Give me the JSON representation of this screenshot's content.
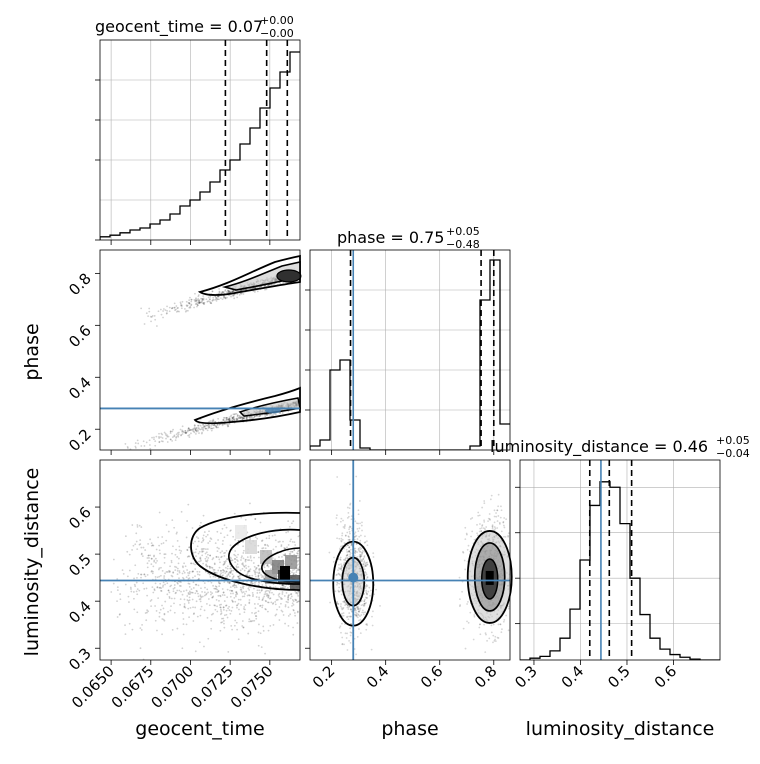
{
  "colors": {
    "truth": "#4682b4",
    "hist": "#000000",
    "grid": "#b0b0b0",
    "quantile": "#000000",
    "density_dark": "#303030"
  },
  "chart_data": [
    {
      "type": "histogram",
      "panel": "geocent_time_1d",
      "title_main": "geocent_time = 0.07",
      "title_sup": "+0.00",
      "title_sub": "−0.00",
      "xlim": [
        0.0643,
        0.0769
      ],
      "bin_edges_start": 0.0643,
      "bin_width": 0.00063,
      "counts": [
        0.008,
        0.012,
        0.018,
        0.025,
        0.03,
        0.04,
        0.05,
        0.065,
        0.085,
        0.1,
        0.12,
        0.145,
        0.175,
        0.2,
        0.24,
        0.28,
        0.33,
        0.38,
        0.42,
        0.47
      ],
      "ylim": [
        0,
        0.5
      ],
      "quantiles": [
        0.0722,
        0.0748,
        0.0761
      ],
      "grid": true
    },
    {
      "type": "histogram",
      "panel": "phase_1d",
      "title_main": "phase = 0.75",
      "title_sup": "+0.05",
      "title_sub": "−0.48",
      "xlim": [
        0.12,
        0.86
      ],
      "bin_edges_start": 0.12,
      "bin_width": 0.037,
      "counts": [
        0.02,
        0.05,
        0.4,
        0.45,
        0.15,
        0.01,
        0,
        0,
        0,
        0,
        0,
        0,
        0,
        0,
        0,
        0,
        0.02,
        0.75,
        0.95,
        0.13
      ],
      "ylim": [
        0,
        1.0
      ],
      "quantiles": [
        0.27,
        0.753,
        0.8
      ],
      "truth": 0.28,
      "grid": true
    },
    {
      "type": "histogram",
      "panel": "luminosity_distance_1d",
      "title_main": "luminosity_distance = 0.46",
      "title_sup": "+0.05",
      "title_sub": "−0.04",
      "xlim": [
        0.27,
        0.7
      ],
      "bin_edges_start": 0.27,
      "bin_width": 0.0215,
      "counts": [
        0.0,
        0.01,
        0.02,
        0.05,
        0.12,
        0.28,
        0.55,
        0.85,
        0.98,
        0.95,
        0.75,
        0.45,
        0.25,
        0.12,
        0.06,
        0.03,
        0.015,
        0.005,
        0,
        0
      ],
      "ylim": [
        0,
        1.1
      ],
      "quantiles": [
        0.42,
        0.462,
        0.51
      ],
      "truth": 0.444,
      "grid": true
    },
    {
      "type": "scatter",
      "panel": "phase_vs_geocent_time",
      "xlim": [
        0.0643,
        0.0769
      ],
      "ylim": [
        0.12,
        0.89
      ],
      "ylabel": "phase",
      "yticks": [
        0.2,
        0.4,
        0.6,
        0.8
      ],
      "truth_y": 0.28,
      "modes": [
        {
          "x0": 0.0665,
          "x1": 0.0769,
          "y0": 0.62,
          "y1": 0.8,
          "peak_x": 0.0762,
          "peak_y": 0.79
        },
        {
          "x0": 0.0652,
          "x1": 0.0769,
          "y0": 0.12,
          "y1": 0.3,
          "peak_x": 0.0752,
          "peak_y": 0.28
        }
      ]
    },
    {
      "type": "scatter",
      "panel": "luminosity_distance_vs_geocent_time",
      "xlim": [
        0.0643,
        0.0769
      ],
      "ylim": [
        0.275,
        0.7
      ],
      "xlabel": "geocent_time",
      "ylabel": "luminosity_distance",
      "xticks": [
        "0.0650",
        "0.0675",
        "0.0700",
        "0.0725",
        "0.0750"
      ],
      "xtick_values": [
        0.065,
        0.0675,
        0.07,
        0.0725,
        0.075
      ],
      "yticks": [
        0.3,
        0.4,
        0.5,
        0.6
      ],
      "truth_y": 0.444,
      "peak": {
        "x": 0.0762,
        "y": 0.45
      }
    },
    {
      "type": "scatter",
      "panel": "luminosity_distance_vs_phase",
      "xlim": [
        0.12,
        0.86
      ],
      "ylim": [
        0.275,
        0.7
      ],
      "xlabel": "phase",
      "xticks": [
        0.2,
        0.4,
        0.6,
        0.8
      ],
      "truth_x": 0.28,
      "truth_y": 0.444,
      "blobs": [
        {
          "cx": 0.28,
          "cy": 0.45,
          "sx": 0.03,
          "sy": 0.06
        },
        {
          "cx": 0.785,
          "cy": 0.46,
          "sx": 0.04,
          "sy": 0.06
        }
      ]
    },
    {
      "type": "axis",
      "panel": "luminosity_distance_xaxis",
      "xlabel": "luminosity_distance",
      "xticks": [
        0.3,
        0.4,
        0.5,
        0.6
      ]
    }
  ]
}
